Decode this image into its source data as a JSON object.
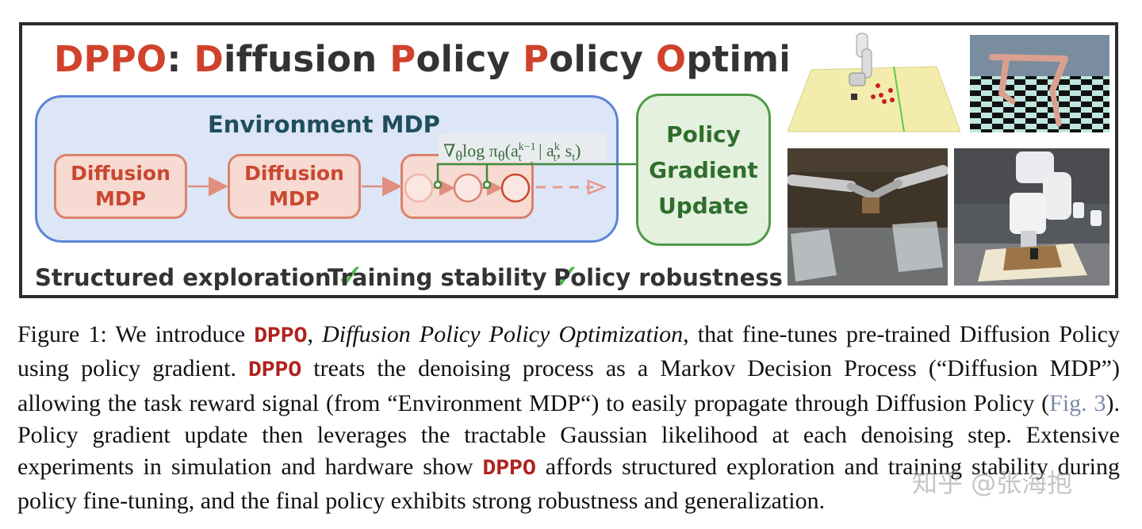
{
  "figure": {
    "title_parts": [
      {
        "text": "DPPO",
        "red": true
      },
      {
        "text": ": ",
        "red": false
      },
      {
        "text": "D",
        "red": true
      },
      {
        "text": "iffusion ",
        "red": false
      },
      {
        "text": "P",
        "red": true
      },
      {
        "text": "olicy ",
        "red": false
      },
      {
        "text": "P",
        "red": true
      },
      {
        "text": "olicy ",
        "red": false
      },
      {
        "text": "O",
        "red": true
      },
      {
        "text": "ptimization",
        "red": false
      }
    ],
    "environment_label": "Environment MDP",
    "diffusion_mdp_line1": "Diffusion",
    "diffusion_mdp_line2": "MDP",
    "gradient_formula": {
      "prefix": "∇",
      "sub_theta": "θ",
      "log_pi": "log π",
      "sub_theta2": "θ",
      "open": "(a",
      "sup_k_minus_1": "k−1",
      "sub_t1": "t",
      "bar": " | a",
      "sup_k": "k",
      "sub_t2": "t",
      "tail": ", s",
      "sub_t3": "t",
      "close": ")"
    },
    "policy_gradient_update": [
      "Policy",
      "Gradient",
      "Update"
    ],
    "properties": [
      "Structured exploration",
      "Training stability",
      "Policy robustness"
    ],
    "check_symbol": "✓",
    "colors": {
      "title_red": "#d0422b",
      "env_blue": "#5b86d6",
      "mdp_red": "#c9472f",
      "pgu_green": "#4f9a47",
      "check_green": "#4fb84a"
    }
  },
  "caption": {
    "label": "Figure 1:",
    "t1": " We introduce ",
    "kw": "DPPO",
    "t2": ", ",
    "italic_name": "Diffusion Policy Policy Optimization",
    "t3": ", that fine-tunes pre-trained Diffusion Policy using policy gradient. ",
    "t4": " treats the denoising process as a Markov Decision Process (“Diffusion MDP”) allowing the task reward signal (from “Environment MDP“) to easily propagate through Diffusion Policy (",
    "ref": "Fig. 3",
    "t5": ").  Policy gradient update then leverages the tractable Gaussian likelihood at each denoising step.  Extensive experiments in simulation and hardware show ",
    "t6": " affords structured exploration and training stability during policy fine-tuning, and the final policy exhibits strong robustness and generalization."
  },
  "watermark": "知乎 @张海抱"
}
